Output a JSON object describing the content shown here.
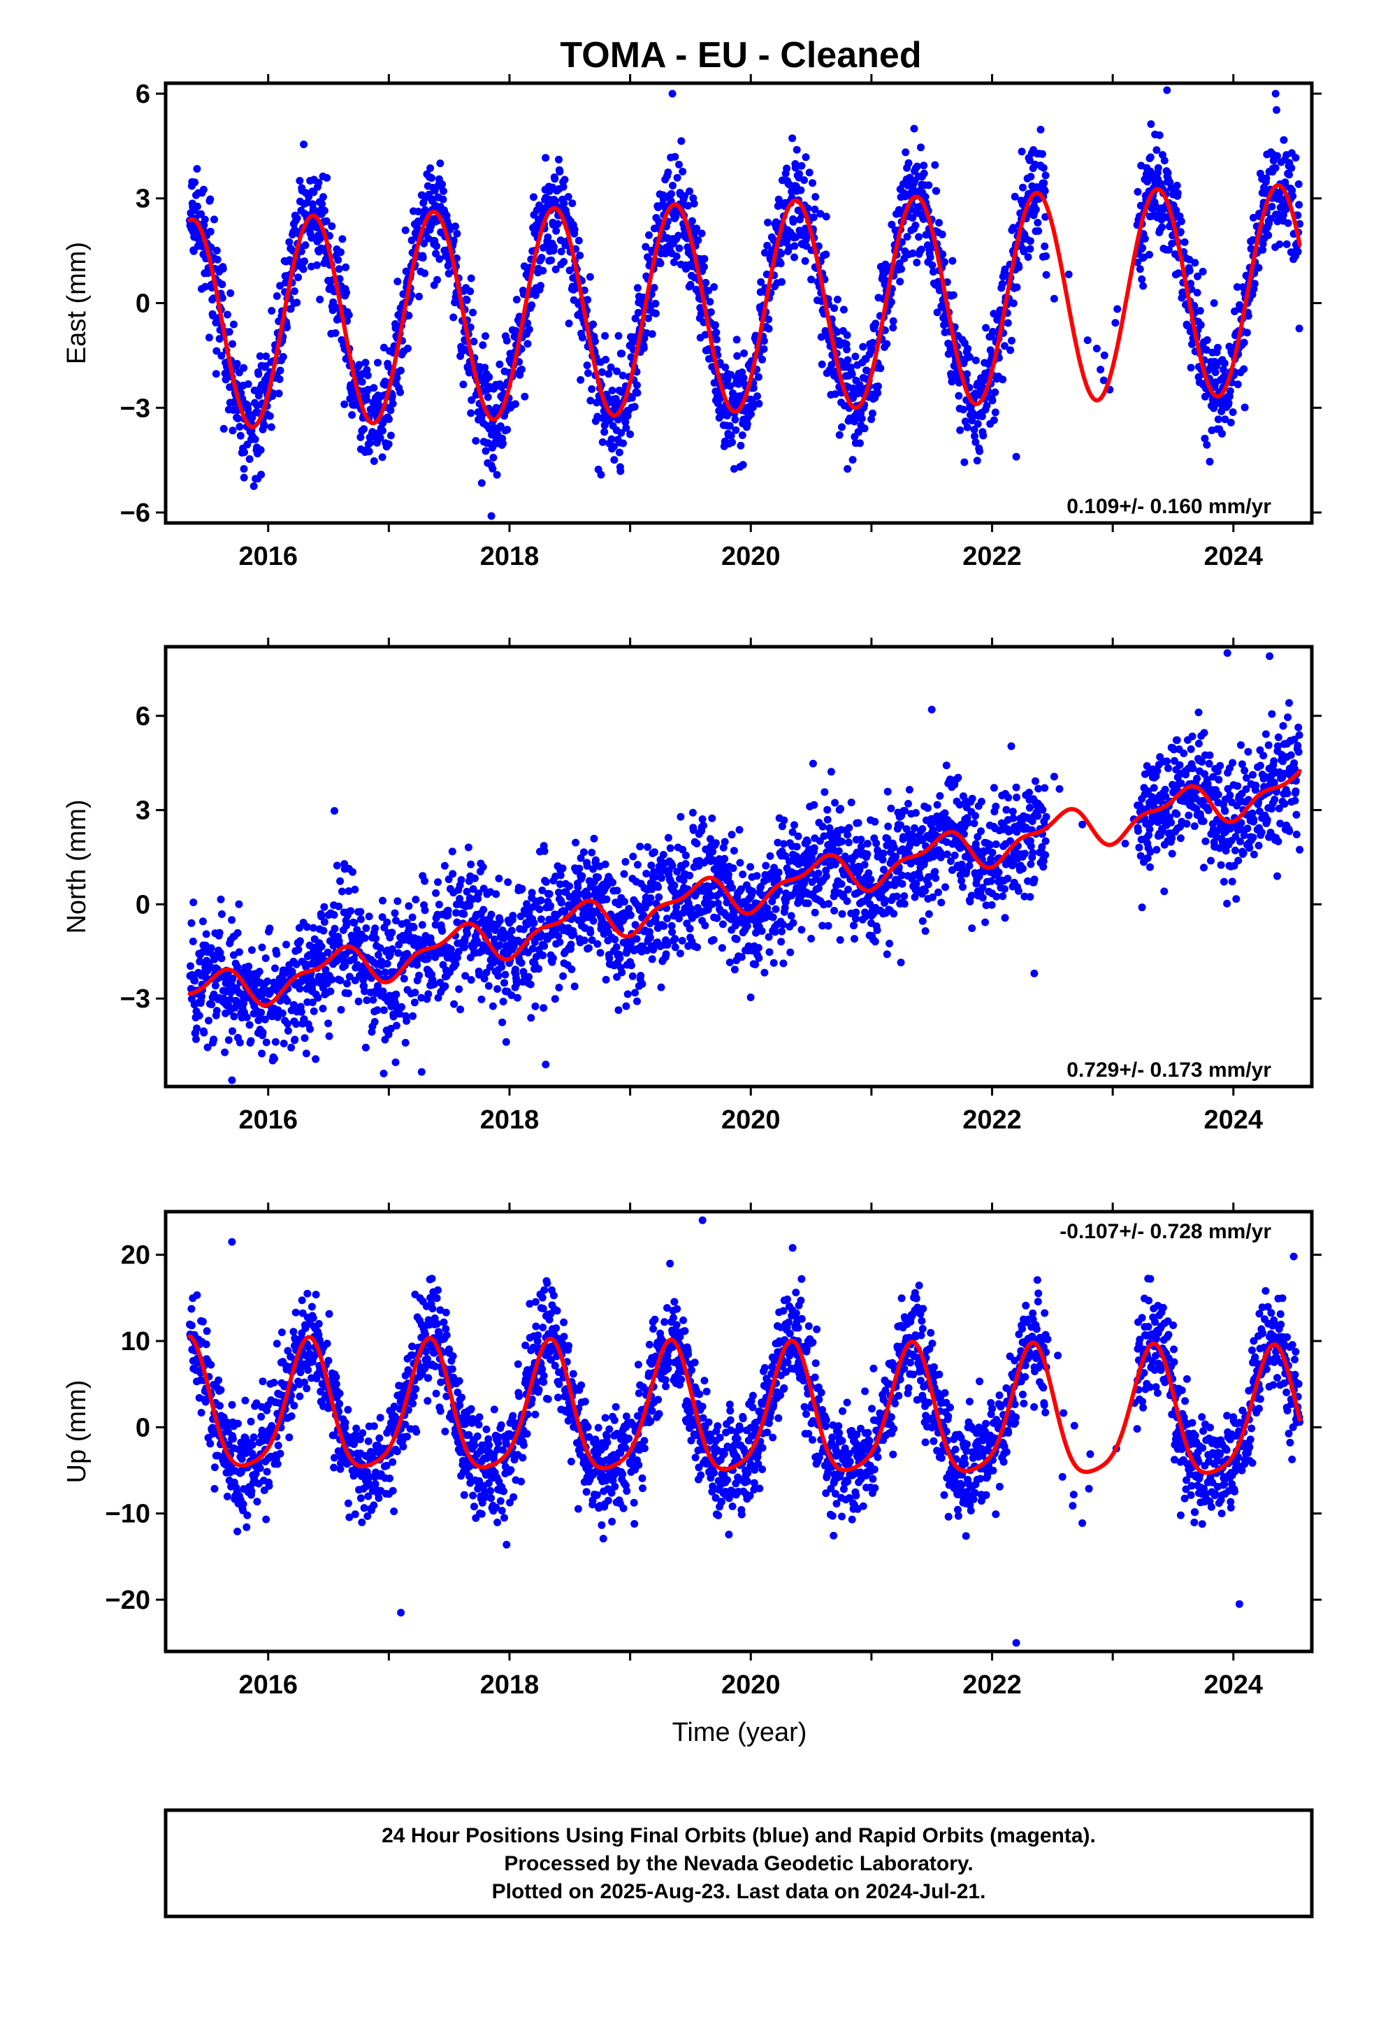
{
  "title": "TOMA  - EU - Cleaned",
  "xlabel": "Time (year)",
  "footer": {
    "line1": "24 Hour Positions Using Final Orbits (blue) and Rapid Orbits (magenta).",
    "line2": "Processed by the Nevada Geodetic Laboratory.",
    "line3": "Plotted on 2025-Aug-23. Last data on 2024-Jul-21."
  },
  "colors": {
    "points": "#0000ff",
    "fit": "#ff0000",
    "frame": "#000000"
  },
  "chart_data": [
    {
      "type": "scatter",
      "ylabel": "East (mm)",
      "rate_label": "0.109+/- 0.160 mm/yr",
      "rate_position": "bottom-right",
      "xlim": [
        2015.15,
        2024.65
      ],
      "ylim": [
        -6.3,
        6.3
      ],
      "xticks": [
        2016,
        2018,
        2020,
        2022,
        2024
      ],
      "yticks": [
        -6,
        -3,
        0,
        3,
        6
      ],
      "ytick_labels": [
        "−6",
        "−3",
        "0",
        "3",
        "6"
      ],
      "data_range": [
        2015.35,
        2024.55
      ],
      "gaps": [
        [
          2022.45,
          2023.2
        ]
      ],
      "fit": {
        "offset": -0.1,
        "rate": 0.109,
        "amplitude": 3.0,
        "phase_year": 2015.37,
        "semiannual_amp": 0.0,
        "semiannual_phase": 2015.0,
        "t0": 2020.0
      },
      "scatter_std": 0.8,
      "extremes": [
        [
          2019.35,
          6.0
        ],
        [
          2023.45,
          6.1
        ],
        [
          2017.85,
          -6.1
        ],
        [
          2015.8,
          -5.0
        ],
        [
          2024.35,
          6.0
        ],
        [
          2022.2,
          -4.4
        ]
      ]
    },
    {
      "type": "scatter",
      "ylabel": "North (mm)",
      "rate_label": "0.729+/- 0.173 mm/yr",
      "rate_position": "bottom-right",
      "xlim": [
        2015.15,
        2024.65
      ],
      "ylim": [
        -5.8,
        8.2
      ],
      "xticks": [
        2016,
        2018,
        2020,
        2022,
        2024
      ],
      "yticks": [
        -3,
        0,
        3,
        6
      ],
      "ytick_labels": [
        "−3",
        "0",
        "3",
        "6"
      ],
      "data_range": [
        2015.35,
        2024.55
      ],
      "gaps": [
        [
          2022.45,
          2023.2
        ]
      ],
      "fit": {
        "offset": 0.45,
        "rate": 0.729,
        "amplitude": 0.55,
        "phase_year": 2015.55,
        "semiannual_amp": 0.25,
        "semiannual_phase": 2015.2,
        "t0": 2020.0
      },
      "scatter_std": 1.0,
      "extremes": [
        [
          2023.95,
          8.0
        ],
        [
          2024.3,
          7.9
        ],
        [
          2021.5,
          6.2
        ],
        [
          2015.7,
          -5.6
        ],
        [
          2018.3,
          -5.1
        ],
        [
          2022.35,
          -2.2
        ]
      ]
    },
    {
      "type": "scatter",
      "ylabel": "Up (mm)",
      "rate_label": "-0.107+/- 0.728 mm/yr",
      "rate_position": "top-right",
      "xlim": [
        2015.15,
        2024.65
      ],
      "ylim": [
        -26,
        25
      ],
      "xticks": [
        2016,
        2018,
        2020,
        2022,
        2024
      ],
      "yticks": [
        -20,
        -10,
        0,
        10,
        20
      ],
      "ytick_labels": [
        "−20",
        "−10",
        "0",
        "10",
        "20"
      ],
      "data_range": [
        2015.35,
        2024.55
      ],
      "gaps": [
        [
          2022.45,
          2023.2
        ]
      ],
      "fit": {
        "offset": 1.2,
        "rate": -0.107,
        "amplitude": 7.4,
        "phase_year": 2015.33,
        "semiannual_amp": 1.5,
        "semiannual_phase": 2015.35,
        "t0": 2020.0
      },
      "scatter_std": 3.2,
      "extremes": [
        [
          2019.6,
          24.0
        ],
        [
          2022.2,
          -25.0
        ],
        [
          2017.1,
          -21.5
        ],
        [
          2024.05,
          -20.5
        ],
        [
          2015.7,
          21.5
        ],
        [
          2024.5,
          19.8
        ]
      ]
    }
  ]
}
